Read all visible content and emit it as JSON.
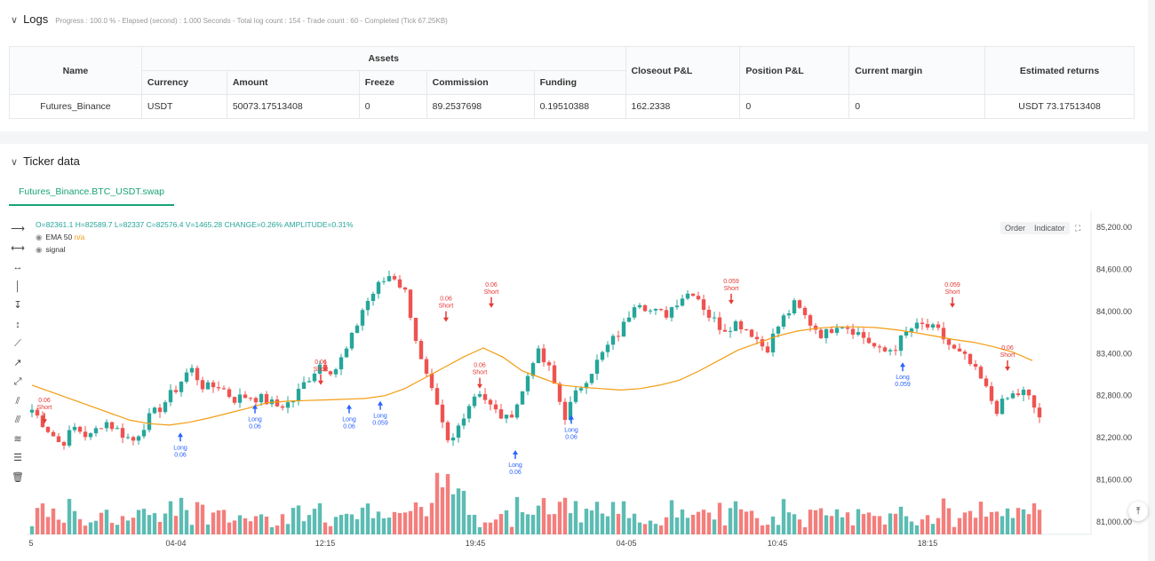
{
  "logs": {
    "title": "Logs",
    "meta": "Progress : 100.0 % - Elapsed (second) : 1.000  Seconds - Total log count : 154 - Trade count : 60 - Completed (Tick 67.25KB)",
    "table": {
      "header_name": "Name",
      "header_assets": "Assets",
      "header_closeout": "Closeout P&L",
      "header_position": "Position P&L",
      "header_margin": "Current margin",
      "header_returns": "Estimated returns",
      "sub_currency": "Currency",
      "sub_amount": "Amount",
      "sub_freeze": "Freeze",
      "sub_commission": "Commission",
      "sub_funding": "Funding",
      "row": {
        "name": "Futures_Binance",
        "currency": "USDT",
        "amount": "50073.17513408",
        "freeze": "0",
        "commission": "89.2537698",
        "funding": "0.19510388",
        "closeout": "162.2338",
        "position": "0",
        "margin": "0",
        "returns": "USDT 73.17513408"
      }
    }
  },
  "ticker": {
    "title": "Ticker data",
    "tab": "Futures_Binance.BTC_USDT.swap",
    "ohlc_o": "O=82361.1",
    "ohlc_h": "H=82589.7",
    "ohlc_l": "L=82337",
    "ohlc_c": "C=82576.4",
    "ohlc_v": "V=1465.28",
    "ohlc_change": "CHANGE=0.26%",
    "ohlc_amp": "AMPLITUDE=0.31%",
    "ema_label": "EMA 50",
    "ema_value": "n/a",
    "signal_label": "signal",
    "order_button": "Order",
    "indicator_button": "Indicator",
    "fullscreen_icon": "expand-icon",
    "scroll_top_icon": "arrow-up-icon"
  },
  "colors": {
    "up": "#26a69a",
    "down": "#ef5350",
    "ema": "#f39c12",
    "long": "#2962ff",
    "short": "#e53935",
    "tab": "#1aa37a"
  },
  "chart_data": {
    "type": "candlestick",
    "y_ticks": [
      "85,200.00",
      "84,600.00",
      "84,000.00",
      "83,400.00",
      "82,800.00",
      "82,200.00",
      "81,600.00",
      "81,000.00"
    ],
    "x_ticks": [
      "5",
      "04-04",
      "12:15",
      "19:45",
      "04-05",
      "10:45",
      "18:15"
    ],
    "ylim": [
      81000,
      85200
    ],
    "close_path": [
      82600,
      82350,
      82100,
      82350,
      82200,
      82450,
      82300,
      82150,
      82450,
      82650,
      82900,
      83200,
      82900,
      82950,
      82750,
      82800,
      82750,
      82650,
      82700,
      83000,
      83250,
      83150,
      83500,
      84050,
      84350,
      84550,
      84250,
      83300,
      82700,
      82050,
      82550,
      82900,
      82600,
      82450,
      82800,
      83450,
      83150,
      82500,
      82900,
      83200,
      83500,
      83750,
      84200,
      84000,
      83950,
      84200,
      84300,
      83950,
      83750,
      83850,
      83700,
      83450,
      83850,
      84100,
      83850,
      83650,
      83850,
      83750,
      83600,
      83400,
      83500,
      83750,
      83800,
      83700,
      83450,
      83300,
      83000,
      82600,
      82800,
      82850,
      82500
    ],
    "ema_path": [
      82950,
      82850,
      82750,
      82650,
      82550,
      82450,
      82400,
      82380,
      82420,
      82480,
      82550,
      82620,
      82700,
      82720,
      82730,
      82740,
      82750,
      82760,
      82800,
      82900,
      83050,
      83200,
      83350,
      83480,
      83350,
      83150,
      83050,
      82950,
      82920,
      82900,
      82880,
      82900,
      82950,
      83020,
      83150,
      83300,
      83450,
      83550,
      83650,
      83720,
      83760,
      83780,
      83780,
      83770,
      83740,
      83700,
      83650,
      83600,
      83560,
      83500,
      83420,
      83300
    ],
    "markers": [
      {
        "type": "Long",
        "qty": "0.06"
      },
      {
        "type": "Long",
        "qty": "0.06"
      },
      {
        "type": "Long",
        "qty": "0.06"
      },
      {
        "type": "Long",
        "qty": "0.059"
      },
      {
        "type": "Long",
        "qty": "0.06"
      },
      {
        "type": "Long",
        "qty": "0.06"
      },
      {
        "type": "Long",
        "qty": "0.059"
      },
      {
        "type": "Short",
        "qty": "0.06"
      },
      {
        "type": "Short",
        "qty": "0.06"
      },
      {
        "type": "Short",
        "qty": "0.06"
      },
      {
        "type": "Short",
        "qty": "0.06"
      },
      {
        "type": "Short",
        "qty": "0.06"
      },
      {
        "type": "Short",
        "qty": "0.059"
      },
      {
        "type": "Short",
        "qty": "0.059"
      },
      {
        "type": "Short",
        "qty": "0.06"
      }
    ]
  }
}
